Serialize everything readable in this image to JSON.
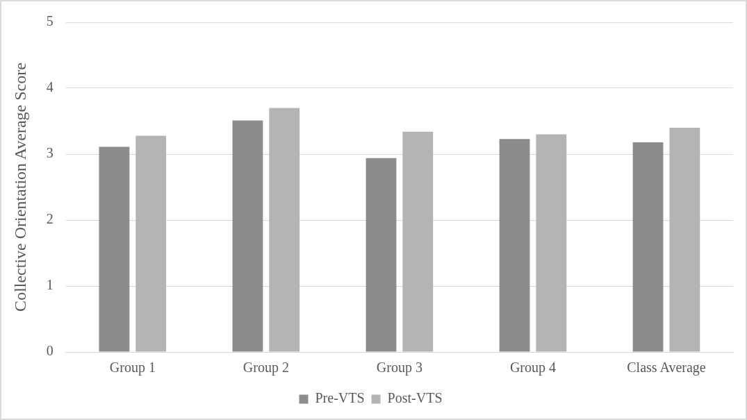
{
  "chart_data": {
    "type": "bar",
    "ylabel": "Collective Orientation Average Score",
    "categories": [
      "Group 1",
      "Group 2",
      "Group 3",
      "Group 4",
      "Class Average"
    ],
    "series": [
      {
        "name": "Pre-VTS",
        "color": "#8c8c8c",
        "values": [
          3.11,
          3.51,
          2.94,
          3.23,
          3.18
        ]
      },
      {
        "name": "Post-VTS",
        "color": "#b4b4b4",
        "values": [
          3.28,
          3.7,
          3.34,
          3.3,
          3.4
        ]
      }
    ],
    "ylim": [
      0,
      5
    ],
    "yticks": [
      0,
      1,
      2,
      3,
      4,
      5
    ],
    "grid": "y",
    "legend": "bottom"
  }
}
